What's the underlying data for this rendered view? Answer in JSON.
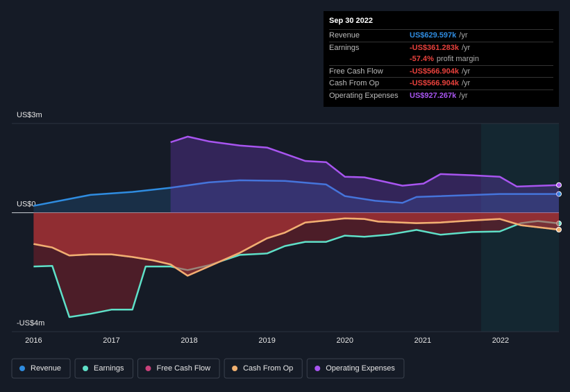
{
  "chart_data": {
    "type": "line",
    "xlim": [
      2015.72,
      2022.75
    ],
    "xticks": [
      2016,
      2017,
      2018,
      2019,
      2020,
      2021,
      2022
    ],
    "ylim": [
      -4,
      3
    ],
    "yticks": [
      {
        "value": 3,
        "label": "US$3m"
      },
      {
        "value": 0,
        "label": "US$0"
      },
      {
        "value": -4,
        "label": "-US$4m"
      }
    ],
    "series": [
      {
        "name": "Revenue",
        "color": "#2f8ce0",
        "x": [
          2016.0,
          2016.73,
          2017.27,
          2017.76,
          2018.25,
          2018.65,
          2019.23,
          2019.76,
          2020.0,
          2020.39,
          2020.74,
          2020.92,
          2021.99,
          2022.75
        ],
        "values": [
          0.23,
          0.6,
          0.7,
          0.84,
          1.02,
          1.09,
          1.07,
          0.95,
          0.56,
          0.4,
          0.33,
          0.53,
          0.63,
          0.63
        ]
      },
      {
        "name": "Earnings",
        "color": "#5fe0c8",
        "x": [
          2016.0,
          2016.24,
          2016.46,
          2016.73,
          2017.0,
          2017.27,
          2017.44,
          2017.76,
          2017.98,
          2018.25,
          2018.65,
          2019.0,
          2019.23,
          2019.49,
          2019.76,
          2020.0,
          2020.25,
          2020.56,
          2020.92,
          2021.23,
          2021.63,
          2021.99,
          2022.26,
          2022.48,
          2022.75
        ],
        "values": [
          -1.81,
          -1.79,
          -3.51,
          -3.4,
          -3.26,
          -3.26,
          -1.81,
          -1.81,
          -1.93,
          -1.77,
          -1.42,
          -1.37,
          -1.12,
          -0.98,
          -0.98,
          -0.77,
          -0.81,
          -0.74,
          -0.58,
          -0.74,
          -0.65,
          -0.63,
          -0.35,
          -0.28,
          -0.36
        ]
      },
      {
        "name": "Free Cash Flow",
        "color": "#c8417a",
        "x": [
          2016.0,
          2016.24,
          2016.46,
          2016.73,
          2017.0,
          2017.27,
          2017.53,
          2017.76,
          2017.98,
          2018.25,
          2018.65,
          2019.0,
          2019.23,
          2019.49,
          2019.76,
          2020.0,
          2020.25,
          2020.43,
          2020.92,
          2021.23,
          2021.63,
          2021.99,
          2022.26,
          2022.75
        ],
        "values": [
          -1.05,
          -1.17,
          -1.44,
          -1.4,
          -1.4,
          -1.49,
          -1.6,
          -1.74,
          -2.12,
          -1.81,
          -1.35,
          -0.86,
          -0.67,
          -0.33,
          -0.26,
          -0.19,
          -0.21,
          -0.3,
          -0.35,
          -0.33,
          -0.26,
          -0.21,
          -0.42,
          -0.57
        ]
      },
      {
        "name": "Cash From Op",
        "color": "#f0b070",
        "x": [
          2016.0,
          2016.24,
          2016.46,
          2016.73,
          2017.0,
          2017.27,
          2017.53,
          2017.76,
          2017.98,
          2018.25,
          2018.65,
          2019.0,
          2019.23,
          2019.49,
          2019.76,
          2020.0,
          2020.25,
          2020.43,
          2020.92,
          2021.23,
          2021.63,
          2021.99,
          2022.26,
          2022.75
        ],
        "values": [
          -1.05,
          -1.17,
          -1.44,
          -1.4,
          -1.4,
          -1.49,
          -1.6,
          -1.74,
          -2.12,
          -1.81,
          -1.35,
          -0.86,
          -0.67,
          -0.33,
          -0.26,
          -0.19,
          -0.21,
          -0.3,
          -0.35,
          -0.33,
          -0.26,
          -0.21,
          -0.42,
          -0.57
        ]
      },
      {
        "name": "Operating Expenses",
        "color": "#a855f0",
        "x": [
          2017.76,
          2017.98,
          2018.25,
          2018.65,
          2019.0,
          2019.23,
          2019.49,
          2019.76,
          2020.0,
          2020.25,
          2020.43,
          2020.74,
          2021.01,
          2021.23,
          2021.63,
          2021.99,
          2022.21,
          2022.75
        ],
        "values": [
          2.37,
          2.56,
          2.4,
          2.26,
          2.19,
          1.98,
          1.74,
          1.7,
          1.21,
          1.19,
          1.09,
          0.91,
          0.98,
          1.3,
          1.26,
          1.21,
          0.88,
          0.93
        ]
      }
    ]
  },
  "tooltip": {
    "date": "Sep 30 2022",
    "rows": [
      {
        "label": "Revenue",
        "value": "US$629.597k",
        "suffix": "/yr",
        "color": "#2f8ce0"
      },
      {
        "label": "Earnings",
        "value": "-US$361.283k",
        "suffix": "/yr",
        "color": "#e8413c"
      },
      {
        "value": "-57.4%",
        "suffix": "profit margin",
        "color": "#e8413c"
      },
      {
        "label": "Free Cash Flow",
        "value": "-US$566.904k",
        "suffix": "/yr",
        "color": "#e8413c"
      },
      {
        "label": "Cash From Op",
        "value": "-US$566.904k",
        "suffix": "/yr",
        "color": "#e8413c"
      },
      {
        "label": "Operating Expenses",
        "value": "US$927.267k",
        "suffix": "/yr",
        "color": "#a855f0"
      }
    ]
  }
}
